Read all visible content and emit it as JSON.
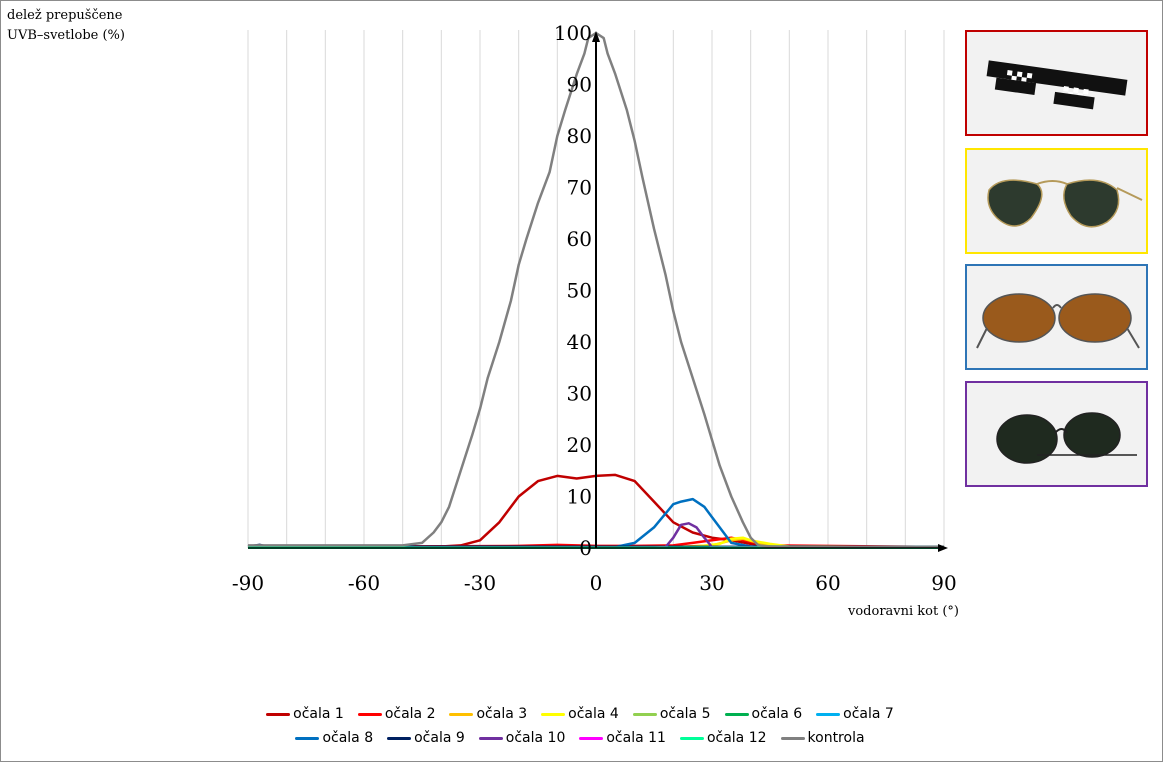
{
  "chart_data": {
    "type": "line",
    "xlabel": "vodoravni kot (°)",
    "ylabel_lines": [
      "delež prepuščene",
      "UVB–svetlobe (%)"
    ],
    "xlim": [
      -90,
      90
    ],
    "ylim": [
      0,
      100
    ],
    "xticks": [
      "-90",
      "-60",
      "-30",
      "0",
      "30",
      "60",
      "90"
    ],
    "yticks": [
      "0",
      "10",
      "20",
      "30",
      "40",
      "50",
      "60",
      "70",
      "80",
      "90",
      "100"
    ],
    "grid": "vertical",
    "legend": "bottom",
    "series": [
      {
        "name": "očala 1",
        "color": "#c00000",
        "x": [
          -90,
          -40,
          -35,
          -30,
          -25,
          -20,
          -15,
          -10,
          -5,
          0,
          5,
          10,
          15,
          20,
          25,
          30,
          35,
          40,
          45,
          50,
          90
        ],
        "y": [
          0.3,
          0.3,
          0.5,
          1.5,
          5,
          10,
          13,
          14,
          13.5,
          14,
          14.2,
          13,
          9,
          5,
          3,
          2,
          1.5,
          0.8,
          0.4,
          0.3,
          0.2
        ]
      },
      {
        "name": "očala 2",
        "color": "#ff0000",
        "x": [
          -90,
          -20,
          -10,
          0,
          10,
          20,
          25,
          30,
          35,
          40,
          45,
          90
        ],
        "y": [
          0.2,
          0.4,
          0.6,
          0.4,
          0.4,
          0.5,
          1,
          1.5,
          2,
          1.2,
          0.5,
          0.2
        ]
      },
      {
        "name": "očala 3",
        "color": "#ffc000",
        "x": [
          -90,
          20,
          30,
          35,
          38,
          42,
          48,
          90
        ],
        "y": [
          0.2,
          0.2,
          0.5,
          1.5,
          1.8,
          1,
          0.3,
          0.2
        ]
      },
      {
        "name": "očala 4",
        "color": "#ffff00",
        "x": [
          -90,
          25,
          32,
          35,
          38,
          40,
          45,
          50,
          90
        ],
        "y": [
          0.2,
          0.2,
          0.8,
          1.8,
          2,
          1.5,
          0.8,
          0.3,
          0.2
        ]
      },
      {
        "name": "očala 5",
        "color": "#92d050",
        "x": [
          -90,
          90
        ],
        "y": [
          0.2,
          0.2
        ]
      },
      {
        "name": "očala 6",
        "color": "#00b050",
        "x": [
          -90,
          90
        ],
        "y": [
          0.1,
          0.1
        ]
      },
      {
        "name": "očala 7",
        "color": "#00b0f0",
        "x": [
          -90,
          90
        ],
        "y": [
          0.15,
          0.15
        ]
      },
      {
        "name": "očala 8",
        "color": "#0070c0",
        "x": [
          -90,
          5,
          10,
          15,
          20,
          22,
          25,
          28,
          30,
          32,
          35,
          40,
          90
        ],
        "y": [
          0.2,
          0.2,
          1,
          4,
          8.5,
          9,
          9.5,
          8,
          6,
          4,
          1,
          0.3,
          0.2
        ]
      },
      {
        "name": "očala 9",
        "color": "#002060",
        "x": [
          -90,
          -87,
          -85,
          -83,
          90
        ],
        "y": [
          0.3,
          0.6,
          0.3,
          0.3,
          0.2
        ]
      },
      {
        "name": "očala 10",
        "color": "#7030a0",
        "x": [
          -90,
          15,
          18,
          20,
          22,
          24,
          26,
          28,
          30,
          90
        ],
        "y": [
          0.1,
          0.1,
          0.2,
          2,
          4.5,
          4.8,
          4,
          2,
          0.2,
          0.1
        ]
      },
      {
        "name": "očala 11",
        "color": "#ff00ff",
        "x": [
          -90,
          90
        ],
        "y": [
          0.05,
          0.05
        ]
      },
      {
        "name": "očala 12",
        "color": "#00ff99",
        "x": [
          -90,
          90
        ],
        "y": [
          0.05,
          0.05
        ]
      },
      {
        "name": "kontrola",
        "color": "#808080",
        "x": [
          -90,
          -50,
          -45,
          -42,
          -40,
          -38,
          -35,
          -32,
          -30,
          -28,
          -25,
          -22,
          -20,
          -18,
          -15,
          -12,
          -10,
          -8,
          -5,
          -3,
          -2,
          0,
          2,
          3,
          5,
          8,
          10,
          12,
          15,
          18,
          20,
          22,
          25,
          28,
          30,
          32,
          35,
          38,
          40,
          42,
          45,
          50,
          90
        ],
        "y": [
          0.5,
          0.5,
          1,
          3,
          5,
          8,
          15,
          22,
          27,
          33,
          40,
          48,
          55,
          60,
          67,
          73,
          80,
          85,
          92,
          96,
          99,
          100,
          99,
          96,
          92,
          85,
          79,
          72,
          62,
          53,
          46,
          40,
          33,
          26,
          21,
          16,
          10,
          5,
          2,
          0.5,
          0.3,
          0.2,
          0.2
        ]
      }
    ]
  },
  "photos": [
    {
      "label": "pixel-sunglasses-photo",
      "border": "#c00000"
    },
    {
      "label": "aviator-sunglasses-photo",
      "border": "#ffe600"
    },
    {
      "label": "brown-sunglasses-photo",
      "border": "#2e75b6"
    },
    {
      "label": "clip-on-sunglasses-photo",
      "border": "#7030a0"
    }
  ]
}
